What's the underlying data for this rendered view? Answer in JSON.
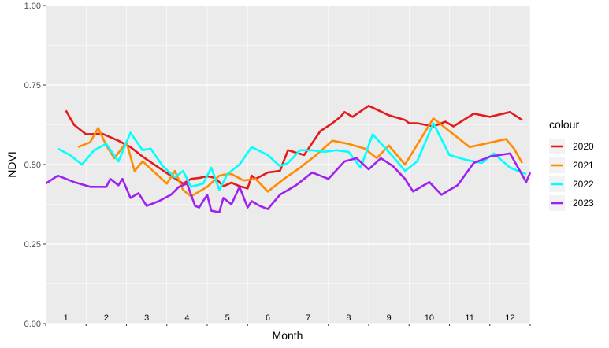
{
  "chart_data": {
    "type": "line",
    "xlabel": "Month",
    "ylabel": "NDVI",
    "ylim": [
      0,
      1
    ],
    "y_ticks": [
      "0.00",
      "0.25",
      "0.50",
      "0.75",
      "1.00"
    ],
    "x_ticks": [
      "1",
      "2",
      "3",
      "4",
      "5",
      "6",
      "7",
      "8",
      "9",
      "10",
      "11",
      "12"
    ],
    "xlim": [
      0.5,
      12.5
    ],
    "grid": true,
    "panel_background": "#ebebeb",
    "legend": {
      "title": "colour",
      "position": "right"
    },
    "series": [
      {
        "name": "2020",
        "color": "#e41a1c",
        "x": [
          1.0,
          1.2,
          1.5,
          1.9,
          2.3,
          2.6,
          2.9,
          3.5,
          3.9,
          4.1,
          4.3,
          4.5,
          4.7,
          4.9,
          5.1,
          5.3,
          5.5,
          5.6,
          5.7,
          6.0,
          6.3,
          6.5,
          6.9,
          7.3,
          7.6,
          7.8,
          7.9,
          8.1,
          8.5,
          9.0,
          9.4,
          9.5,
          9.7,
          10.1,
          10.4,
          10.6,
          11.1,
          11.5,
          12.0,
          12.3
        ],
        "y": [
          0.67,
          0.625,
          0.595,
          0.597,
          0.575,
          0.555,
          0.525,
          0.473,
          0.44,
          0.455,
          0.458,
          0.463,
          0.458,
          0.432,
          0.443,
          0.432,
          0.425,
          0.465,
          0.455,
          0.475,
          0.48,
          0.545,
          0.53,
          0.605,
          0.63,
          0.65,
          0.665,
          0.65,
          0.685,
          0.655,
          0.64,
          0.63,
          0.63,
          0.62,
          0.635,
          0.62,
          0.66,
          0.65,
          0.665,
          0.64
        ]
      },
      {
        "name": "2021",
        "color": "#ff8c00",
        "x": [
          1.3,
          1.6,
          1.8,
          2.0,
          2.2,
          2.5,
          2.7,
          2.9,
          3.2,
          3.5,
          3.7,
          3.9,
          4.1,
          4.5,
          4.8,
          5.0,
          5.1,
          5.4,
          5.7,
          6.0,
          6.4,
          6.8,
          7.2,
          7.6,
          8.0,
          8.4,
          8.7,
          9.0,
          9.4,
          10.1,
          11.0,
          11.9,
          12.1,
          12.3
        ],
        "y": [
          0.555,
          0.57,
          0.615,
          0.56,
          0.52,
          0.57,
          0.48,
          0.51,
          0.475,
          0.44,
          0.48,
          0.42,
          0.4,
          0.43,
          0.465,
          0.47,
          0.47,
          0.45,
          0.455,
          0.415,
          0.455,
          0.49,
          0.53,
          0.575,
          0.565,
          0.55,
          0.52,
          0.56,
          0.5,
          0.645,
          0.555,
          0.58,
          0.55,
          0.505
        ]
      },
      {
        "name": "2022",
        "color": "#00ffff",
        "x": [
          0.8,
          1.1,
          1.4,
          1.7,
          2.0,
          2.3,
          2.6,
          2.9,
          3.1,
          3.4,
          3.7,
          3.9,
          4.1,
          4.4,
          4.6,
          4.8,
          5.0,
          5.3,
          5.6,
          6.0,
          6.3,
          6.5,
          6.8,
          7.1,
          7.4,
          7.7,
          8.0,
          8.3,
          8.6,
          9.1,
          9.4,
          9.7,
          10.1,
          10.5,
          10.9,
          11.3,
          11.6,
          12.0,
          12.4
        ],
        "y": [
          0.55,
          0.53,
          0.5,
          0.545,
          0.565,
          0.51,
          0.6,
          0.545,
          0.55,
          0.495,
          0.46,
          0.48,
          0.43,
          0.44,
          0.49,
          0.42,
          0.47,
          0.5,
          0.555,
          0.53,
          0.495,
          0.505,
          0.545,
          0.545,
          0.54,
          0.545,
          0.54,
          0.49,
          0.595,
          0.525,
          0.48,
          0.51,
          0.63,
          0.53,
          0.515,
          0.505,
          0.535,
          0.49,
          0.47
        ]
      },
      {
        "name": "2023",
        "color": "#a020f0",
        "x": [
          0.5,
          0.8,
          1.2,
          1.6,
          2.0,
          2.1,
          2.3,
          2.4,
          2.6,
          2.8,
          3.0,
          3.3,
          3.6,
          3.8,
          4.0,
          4.2,
          4.3,
          4.5,
          4.6,
          4.8,
          4.9,
          5.1,
          5.3,
          5.5,
          5.6,
          5.8,
          6.0,
          6.3,
          6.7,
          7.1,
          7.5,
          7.9,
          8.2,
          8.5,
          8.8,
          9.1,
          9.4,
          9.6,
          10.0,
          10.3,
          10.7,
          11.1,
          11.5,
          12.0,
          12.4,
          12.5
        ],
        "y": [
          0.44,
          0.465,
          0.445,
          0.43,
          0.43,
          0.455,
          0.435,
          0.455,
          0.395,
          0.41,
          0.37,
          0.385,
          0.405,
          0.43,
          0.44,
          0.37,
          0.365,
          0.405,
          0.355,
          0.35,
          0.395,
          0.375,
          0.43,
          0.365,
          0.385,
          0.37,
          0.36,
          0.405,
          0.435,
          0.475,
          0.455,
          0.51,
          0.52,
          0.485,
          0.52,
          0.495,
          0.455,
          0.415,
          0.445,
          0.405,
          0.435,
          0.505,
          0.525,
          0.535,
          0.445,
          0.475
        ]
      }
    ]
  }
}
